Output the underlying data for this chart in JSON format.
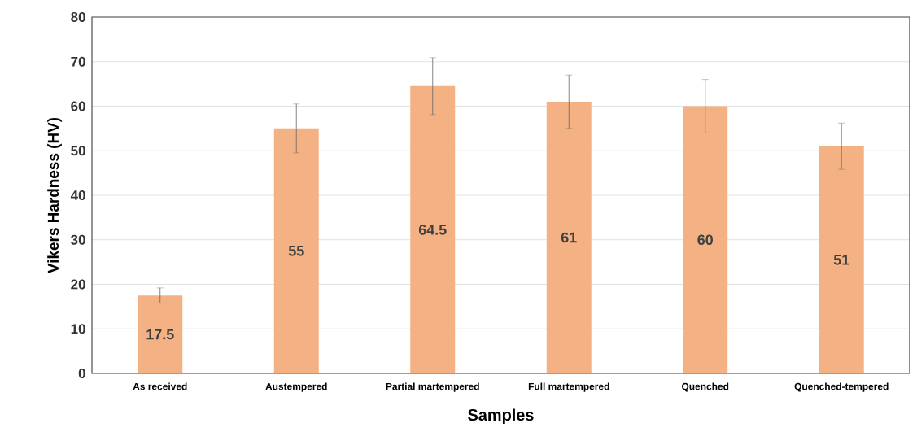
{
  "chart_data": {
    "type": "bar",
    "xlabel": "Samples",
    "ylabel": "Vikers Hardness (HV)",
    "categories": [
      "As received",
      "Austempered",
      "Partial martempered",
      "Full martempered",
      "Quenched",
      "Quenched-tempered"
    ],
    "values": [
      17.5,
      55,
      64.5,
      61,
      60,
      51
    ],
    "errors": [
      1.7,
      5.5,
      6.4,
      6,
      6,
      5.2
    ],
    "color": "#f4b183",
    "ylim": [
      0,
      80
    ],
    "yticks": [
      0,
      10,
      20,
      30,
      40,
      50,
      60,
      70,
      80
    ],
    "grid": "y",
    "data_labels": true
  }
}
